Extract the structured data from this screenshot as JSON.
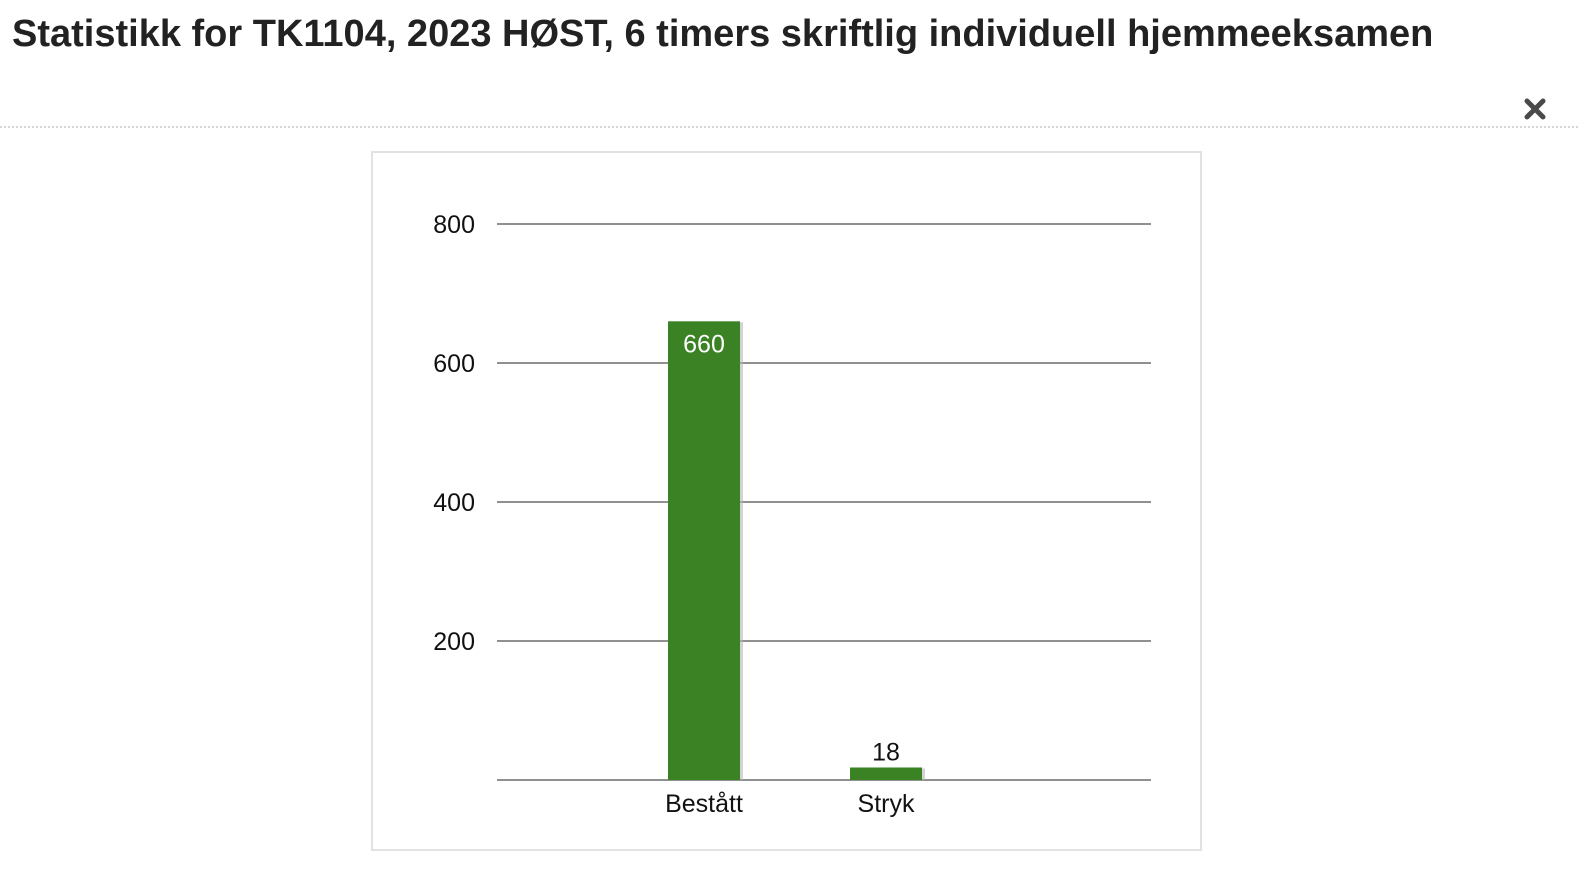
{
  "dialog": {
    "title": "Statistikk for TK1104, 2023 HØST, 6 timers skriftlig individuell hjemmeeksamen",
    "close_icon": "close-icon"
  },
  "chart_data": {
    "type": "bar",
    "categories": [
      "Bestått",
      "Stryk"
    ],
    "values": [
      660,
      18
    ],
    "title": "",
    "xlabel": "",
    "ylabel": "",
    "ylim": [
      0,
      800
    ],
    "yticks": [
      200,
      400,
      600,
      800
    ],
    "ytick_labels": [
      "200",
      "400",
      "600",
      "800"
    ],
    "data_labels": [
      "660",
      "18"
    ],
    "grid": true,
    "legend": "none",
    "colors": {
      "bar": "#3b8224",
      "bar_shadow": "#b5b5b5",
      "gridline": "#6b6b6b",
      "label_inside": "#ffffff",
      "label_outside": "#111111"
    }
  }
}
